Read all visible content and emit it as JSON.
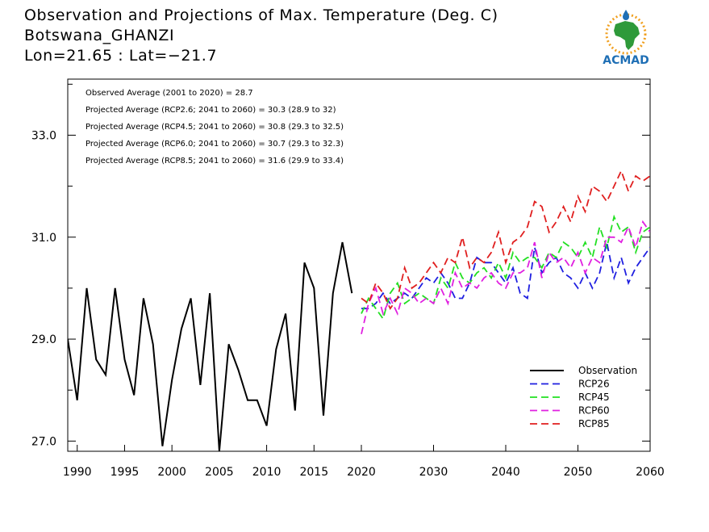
{
  "header": {
    "title": "Observation and Projections of Max. Temperature (Deg. C)",
    "subtitle": "Botswana_GHANZI",
    "location": "Lon=21.65 : Lat=−21.7",
    "logo_text": "ACMAD"
  },
  "colors": {
    "observation": "#000000",
    "rcp26": "#1f1fe0",
    "rcp45": "#22e022",
    "rcp60": "#e020e0",
    "rcp85": "#e01f1f",
    "logo_blue": "#1f6fb5",
    "logo_green": "#2e9a3a",
    "logo_orange": "#f0a020"
  },
  "chart_data": {
    "type": "line",
    "title": "Observation and Projections of Max. Temperature (Deg. C)",
    "xlim": [
      1989,
      2060
    ],
    "ylim": [
      26.8,
      34.1
    ],
    "xticks": [
      1990,
      1995,
      2000,
      2005,
      2010,
      2015,
      2020,
      2030,
      2040,
      2050,
      2060
    ],
    "yticks": [
      27.0,
      29.0,
      31.0,
      33.0
    ],
    "ytick_labels": [
      "27.0",
      "29.0",
      "31.0",
      "33.0"
    ],
    "grid": false,
    "legend_position": "bottom-right",
    "annotations": [
      "Observed Average (2001 to 2020) = 28.7",
      "Projected Average (RCP2.6; 2041 to 2060) = 30.3 (28.9 to 32)",
      "Projected Average (RCP4.5; 2041 to 2060) = 30.8 (29.3 to 32.5)",
      "Projected Average (RCP6.0; 2041 to 2060) = 30.7 (29.3 to 32.3)",
      "Projected Average (RCP8.5; 2041 to 2060) = 31.6 (29.9 to 33.4)"
    ],
    "series": [
      {
        "name": "Observation",
        "style": "solid",
        "x": [
          1989,
          1990,
          1991,
          1992,
          1993,
          1994,
          1995,
          1996,
          1997,
          1998,
          1999,
          2000,
          2001,
          2002,
          2003,
          2004,
          2005,
          2006,
          2007,
          2008,
          2009,
          2010,
          2011,
          2012,
          2013,
          2014,
          2015,
          2016,
          2017,
          2018,
          2019
        ],
        "values": [
          29.0,
          27.8,
          30.0,
          28.6,
          28.3,
          30.0,
          28.6,
          27.9,
          29.8,
          28.9,
          26.9,
          28.2,
          29.2,
          29.8,
          28.1,
          29.9,
          26.8,
          28.9,
          28.4,
          27.8,
          27.8,
          27.3,
          28.8,
          29.5,
          27.6,
          30.5,
          30.0,
          27.5,
          29.9,
          30.9,
          29.9
        ]
      },
      {
        "name": "RCP26",
        "style": "dashed",
        "x": [
          2020,
          2021,
          2022,
          2023,
          2024,
          2025,
          2026,
          2027,
          2028,
          2029,
          2030,
          2031,
          2032,
          2033,
          2034,
          2035,
          2036,
          2037,
          2038,
          2039,
          2040,
          2041,
          2042,
          2043,
          2044,
          2045,
          2046,
          2047,
          2048,
          2049,
          2050,
          2051,
          2052,
          2053,
          2054,
          2055,
          2056,
          2057,
          2058,
          2059,
          2060
        ],
        "values": [
          29.6,
          29.6,
          29.7,
          29.9,
          29.7,
          29.8,
          29.9,
          29.8,
          30.0,
          30.2,
          30.1,
          30.3,
          30.1,
          29.8,
          29.8,
          30.1,
          30.6,
          30.5,
          30.5,
          30.3,
          30.1,
          30.4,
          29.9,
          29.8,
          30.8,
          30.3,
          30.5,
          30.6,
          30.3,
          30.2,
          30.0,
          30.3,
          30.0,
          30.3,
          30.9,
          30.2,
          30.6,
          30.1,
          30.4,
          30.6,
          30.8
        ]
      },
      {
        "name": "RCP45",
        "style": "dashed",
        "x": [
          2020,
          2021,
          2022,
          2023,
          2024,
          2025,
          2026,
          2027,
          2028,
          2029,
          2030,
          2031,
          2032,
          2033,
          2034,
          2035,
          2036,
          2037,
          2038,
          2039,
          2040,
          2041,
          2042,
          2043,
          2044,
          2045,
          2046,
          2047,
          2048,
          2049,
          2050,
          2051,
          2052,
          2053,
          2054,
          2055,
          2056,
          2057,
          2058,
          2059,
          2060
        ],
        "values": [
          29.5,
          29.8,
          29.6,
          29.4,
          29.9,
          30.1,
          29.7,
          29.8,
          29.9,
          29.8,
          29.7,
          30.2,
          30.0,
          30.5,
          30.2,
          30.1,
          30.3,
          30.4,
          30.2,
          30.5,
          30.2,
          30.7,
          30.5,
          30.6,
          30.6,
          30.4,
          30.7,
          30.6,
          30.9,
          30.8,
          30.6,
          30.9,
          30.6,
          31.2,
          30.8,
          31.4,
          31.1,
          31.2,
          30.7,
          31.1,
          31.2
        ]
      },
      {
        "name": "RCP60",
        "style": "dashed",
        "x": [
          2020,
          2021,
          2022,
          2023,
          2024,
          2025,
          2026,
          2027,
          2028,
          2029,
          2030,
          2031,
          2032,
          2033,
          2034,
          2035,
          2036,
          2037,
          2038,
          2039,
          2040,
          2041,
          2042,
          2043,
          2044,
          2045,
          2046,
          2047,
          2048,
          2049,
          2050,
          2051,
          2052,
          2053,
          2054,
          2055,
          2056,
          2057,
          2058,
          2059,
          2060
        ],
        "values": [
          29.1,
          29.7,
          30.0,
          29.5,
          29.8,
          29.5,
          30.0,
          29.9,
          29.7,
          29.8,
          29.7,
          30.0,
          29.7,
          30.3,
          30.0,
          30.1,
          30.0,
          30.2,
          30.3,
          30.1,
          30.0,
          30.3,
          30.3,
          30.4,
          30.9,
          30.2,
          30.7,
          30.5,
          30.6,
          30.4,
          30.7,
          30.3,
          30.6,
          30.5,
          31.0,
          31.0,
          30.9,
          31.2,
          30.8,
          31.3,
          31.1
        ]
      },
      {
        "name": "RCP85",
        "style": "dashed",
        "x": [
          2020,
          2021,
          2022,
          2023,
          2024,
          2025,
          2026,
          2027,
          2028,
          2029,
          2030,
          2031,
          2032,
          2033,
          2034,
          2035,
          2036,
          2037,
          2038,
          2039,
          2040,
          2041,
          2042,
          2043,
          2044,
          2045,
          2046,
          2047,
          2048,
          2049,
          2050,
          2051,
          2052,
          2053,
          2054,
          2055,
          2056,
          2057,
          2058,
          2059,
          2060
        ],
        "values": [
          29.8,
          29.7,
          30.1,
          29.9,
          29.6,
          29.8,
          30.4,
          30.0,
          30.1,
          30.3,
          30.5,
          30.3,
          30.6,
          30.5,
          31.0,
          30.4,
          30.6,
          30.5,
          30.7,
          31.1,
          30.5,
          30.9,
          31.0,
          31.2,
          31.7,
          31.6,
          31.1,
          31.3,
          31.6,
          31.3,
          31.8,
          31.5,
          32.0,
          31.9,
          31.7,
          32.0,
          32.3,
          31.9,
          32.2,
          32.1,
          32.2
        ]
      }
    ]
  }
}
